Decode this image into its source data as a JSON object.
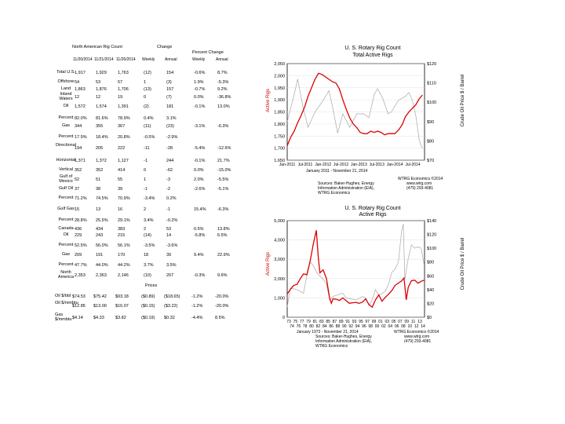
{
  "table": {
    "title": "North American Rig Count",
    "change_header": "Change",
    "pct_change_header": "Percent Change",
    "col_headers": [
      "11/20/2014",
      "11/21/2014",
      "11/26/2014",
      "Weekly",
      "Annual",
      "Weekly",
      "Annual"
    ],
    "rows": [
      {
        "label": "Total U.S.",
        "cells": [
          "1,917",
          "1,929",
          "1,763",
          "(12)",
          "154",
          "-0.6%",
          "8.7%"
        ]
      },
      {
        "label": "Offshore",
        "cells": [
          "54",
          "53",
          "57",
          "1",
          "(3)",
          "1.9%",
          "-5.3%"
        ]
      },
      {
        "label": "Land",
        "cells": [
          "1,863",
          "1,876",
          "1,706",
          "(13)",
          "157",
          "-0.7%",
          "9.2%"
        ]
      },
      {
        "label": "Inland Waters",
        "cells": [
          "12",
          "12",
          "19",
          "0",
          "(7)",
          "0.0%",
          "-36.8%"
        ]
      },
      {
        "label": "Oil",
        "cells": [
          "1,572",
          "1,574",
          "1,391",
          "(2)",
          "181",
          "-0.1%",
          "13.0%"
        ]
      },
      {
        "label": "Percent",
        "cells": [
          "82.0%",
          "81.6%",
          "78.9%",
          "0.4%",
          "3.1%",
          "",
          ""
        ]
      },
      {
        "label": "Gas",
        "cells": [
          "344",
          "355",
          "367",
          "(11)",
          "(23)",
          "-3.1%",
          "-6.3%"
        ]
      },
      {
        "label": "Percent",
        "cells": [
          "17.9%",
          "18.4%",
          "20.8%",
          "-0.5%",
          "-2.9%",
          "",
          ""
        ]
      },
      {
        "label": "Directional",
        "cells": [
          "194",
          "205",
          "222",
          "-11",
          "-28",
          "-5.4%",
          "-12.6%"
        ]
      },
      {
        "label": "Horizontal",
        "cells": [
          "1,371",
          "1,372",
          "1,127",
          "-1",
          "244",
          "-0.1%",
          "21.7%"
        ]
      },
      {
        "label": "Vertical",
        "cells": [
          "352",
          "352",
          "414",
          "0",
          "-62",
          "0.0%",
          "-15.0%"
        ]
      },
      {
        "label": "Gulf of Mexico",
        "cells": [
          "52",
          "51",
          "55",
          "1",
          "-3",
          "2.0%",
          "-5.5%"
        ]
      },
      {
        "label": "Gulf Oil",
        "cells": [
          "37",
          "38",
          "39",
          "-1",
          "-2",
          "-2.6%",
          "-5.1%"
        ]
      },
      {
        "label": "Percent",
        "cells": [
          "71.2%",
          "74.5%",
          "70.9%",
          "-3.4%",
          "0.2%",
          "",
          ""
        ]
      },
      {
        "label": "Gulf Gas",
        "cells": [
          "15",
          "13",
          "16",
          "2",
          "-1",
          "15.4%",
          "-6.3%"
        ]
      },
      {
        "label": "Percent",
        "cells": [
          "28.8%",
          "25.5%",
          "29.1%",
          "3.4%",
          "-0.2%",
          "",
          ""
        ]
      },
      {
        "label": "Canada",
        "cells": [
          "436",
          "434",
          "383",
          "2",
          "53",
          "0.5%",
          "13.8%"
        ]
      },
      {
        "label": "Oil",
        "cells": [
          "229",
          "243",
          "215",
          "(14)",
          "14",
          "-5.8%",
          "6.5%"
        ]
      },
      {
        "label": "Percent",
        "cells": [
          "52.5%",
          "56.0%",
          "56.1%",
          "-3.5%",
          "-3.6%",
          "",
          ""
        ]
      },
      {
        "label": "Gas",
        "cells": [
          "209",
          "191",
          "170",
          "18",
          "39",
          "9.4%",
          "22.9%"
        ]
      },
      {
        "label": "Percent",
        "cells": [
          "47.7%",
          "44.0%",
          "44.2%",
          "3.7%",
          "3.5%",
          "",
          ""
        ]
      },
      {
        "label": "North America",
        "cells": [
          "2,353",
          "2,363",
          "2,146",
          "(10)",
          "207",
          "-0.3%",
          "9.6%"
        ]
      }
    ],
    "prices_header": "Prices",
    "price_rows": [
      {
        "label": "Oil $/bbl",
        "cells": [
          "$74.53",
          "$75.42",
          "$93.18",
          "($0.89)",
          "($18.65)",
          "-1.2%",
          "-20.0%"
        ]
      },
      {
        "label": "Oil $/mmbtu",
        "cells": [
          "$12.85",
          "$13.00",
          "$16.07",
          "($0.15)",
          "($3.22)",
          "-1.2%",
          "-20.0%"
        ]
      },
      {
        "label": "Gas $/mmbtu",
        "cells": [
          "$4.14",
          "$4.33",
          "$3.82",
          "($0.19)",
          "$0.32",
          "-4.4%",
          "8.5%"
        ]
      }
    ]
  },
  "chart1": {
    "title": "U. S. Rotary Rig Count",
    "subtitle": "Total Active Rigs",
    "ylabel_left": "Active Rigs",
    "ylabel_right": "Crude Oil Price $ / Barrel",
    "x_ticks": [
      "Jan-2011",
      "Jul-2011",
      "Jan-2012",
      "Jul-2012",
      "Jan-2013",
      "Jul-2013",
      "Jan-2014",
      "Jul-2014"
    ],
    "date_line": "January 2011 - November 21, 2014",
    "credit": "WTRG Economics ©2014",
    "web": "www.wtrg.com",
    "phone": "(479) 293-4081",
    "source_lines": [
      "Sources: Baker-Hughes, Energy",
      "Information Administration (EIA),",
      "WTRG Economics"
    ],
    "colors": {
      "rigs": "#dd0000",
      "price": "#a8a8a8",
      "frame": "#000000"
    },
    "chart_data": {
      "type": "line",
      "ylim_left": [
        1650,
        2050
      ],
      "yticks_left": [
        "2,050",
        "2,000",
        "1,950",
        "1,900",
        "1,850",
        "1,800",
        "1,750",
        "1,700",
        "1,650"
      ],
      "ylim_right": [
        70,
        120
      ],
      "yticks_right": [
        "$120",
        "$110",
        "$100",
        "$90",
        "$80",
        "$70"
      ],
      "series": [
        {
          "axis": "left",
          "x": [
            2011.0,
            2011.1,
            2011.2,
            2011.3,
            2011.4,
            2011.5,
            2011.6,
            2011.7,
            2011.8,
            2011.9,
            2012.0,
            2012.1,
            2012.2,
            2012.3,
            2012.4,
            2012.5,
            2012.6,
            2012.7,
            2012.8,
            2012.9,
            2013.0,
            2013.1,
            2013.2,
            2013.3,
            2013.4,
            2013.5,
            2013.6,
            2013.7,
            2013.8,
            2013.9,
            2014.0,
            2014.1,
            2014.2,
            2014.3,
            2014.4,
            2014.5,
            2014.6,
            2014.7,
            2014.8,
            2014.89
          ],
          "y": [
            1710,
            1745,
            1770,
            1805,
            1835,
            1870,
            1915,
            1950,
            1985,
            2010,
            2005,
            1995,
            1985,
            1975,
            1970,
            1945,
            1900,
            1860,
            1825,
            1800,
            1785,
            1765,
            1760,
            1760,
            1770,
            1765,
            1770,
            1765,
            1755,
            1760,
            1760,
            1760,
            1775,
            1795,
            1830,
            1850,
            1865,
            1880,
            1905,
            1920
          ]
        },
        {
          "axis": "right",
          "x": [
            2011.0,
            2011.2,
            2011.3,
            2011.45,
            2011.6,
            2011.8,
            2012.0,
            2012.2,
            2012.3,
            2012.45,
            2012.6,
            2012.8,
            2013.0,
            2013.2,
            2013.35,
            2013.5,
            2013.6,
            2013.75,
            2013.9,
            2014.0,
            2014.2,
            2014.4,
            2014.5,
            2014.6,
            2014.7,
            2014.8,
            2014.89
          ],
          "y": [
            90,
            104,
            112,
            98,
            87,
            95,
            100,
            106,
            98,
            84,
            94,
            87,
            94,
            94,
            92,
            104,
            107,
            102,
            94,
            95,
            101,
            103,
            105,
            101,
            93,
            80,
            76
          ]
        }
      ]
    }
  },
  "chart2": {
    "title": "U. S. Rotary Rig Count",
    "subtitle": "Active Rigs",
    "ylabel_left": "Active Rigs",
    "ylabel_right": "Crude Oil Price $ / Barrel",
    "x_ticks_top": [
      "73",
      "75",
      "77",
      "79",
      "81",
      "83",
      "85",
      "87",
      "89",
      "91",
      "93",
      "95",
      "97",
      "99",
      "01",
      "03",
      "05",
      "07",
      "09",
      "11",
      "13"
    ],
    "x_ticks_bottom": [
      "74",
      "76",
      "78",
      "80",
      "82",
      "84",
      "86",
      "88",
      "90",
      "92",
      "94",
      "96",
      "98",
      "00",
      "02",
      "04",
      "06",
      "08",
      "10",
      "12",
      "14"
    ],
    "date_line": "January 1973 - November 21, 2014",
    "credit": "WTRG Economics ©2014",
    "web": "www.wtrg.com",
    "phone": "(479) 293-4081",
    "source_lines": [
      "Sources: Baker-Hughes, Energy",
      "Information Administration (EIA),",
      "WTRG Economics"
    ],
    "colors": {
      "rigs": "#dd0000",
      "price": "#a8a8a8",
      "frame": "#000000"
    },
    "chart_data": {
      "type": "line",
      "ylim_left": [
        0,
        5000
      ],
      "yticks_left": [
        "5,000",
        "4,000",
        "3,000",
        "2,000",
        "1,000",
        "0"
      ],
      "ylim_right": [
        0,
        140
      ],
      "yticks_right": [
        "$140",
        "$120",
        "$100",
        "$80",
        "$60",
        "$40",
        "$20",
        "$0"
      ],
      "series": [
        {
          "axis": "left",
          "x": [
            1973,
            1974,
            1975,
            1976,
            1977,
            1978,
            1979,
            1980,
            1981,
            1981.9,
            1982.5,
            1983,
            1984,
            1985,
            1986,
            1986.5,
            1987,
            1988,
            1989,
            1990,
            1991,
            1992,
            1993,
            1994,
            1995,
            1996,
            1997,
            1998,
            1999,
            2000,
            2001,
            2002,
            2003,
            2004,
            2005,
            2006,
            2007,
            2008,
            2008.7,
            2009.4,
            2010,
            2011,
            2012,
            2013,
            2014,
            2014.89
          ],
          "y": [
            1200,
            1450,
            1650,
            1700,
            2000,
            2250,
            2200,
            2900,
            3800,
            4500,
            3100,
            2300,
            2450,
            2000,
            960,
            720,
            950,
            930,
            870,
            1000,
            860,
            720,
            750,
            770,
            720,
            780,
            950,
            650,
            520,
            900,
            1150,
            830,
            1030,
            1190,
            1380,
            1650,
            1770,
            1880,
            2030,
            900,
            1540,
            1890,
            1920,
            1760,
            1860,
            1920
          ]
        },
        {
          "axis": "right",
          "x": [
            1973,
            1974,
            1976,
            1978,
            1979,
            1980,
            1981,
            1982,
            1984,
            1985,
            1986,
            1987,
            1990,
            1991,
            1994,
            1996,
            1997,
            1998,
            1999,
            2000,
            2001,
            2002,
            2003,
            2004,
            2005,
            2006,
            2007,
            2008,
            2008.5,
            2009,
            2010,
            2011,
            2012,
            2013,
            2014,
            2014.89
          ],
          "y": [
            15,
            42,
            40,
            35,
            60,
            80,
            75,
            65,
            55,
            48,
            25,
            30,
            35,
            28,
            25,
            30,
            28,
            17,
            25,
            40,
            32,
            34,
            38,
            48,
            65,
            70,
            80,
            125,
            135,
            55,
            85,
            105,
            100,
            102,
            100,
            76
          ]
        }
      ]
    }
  }
}
